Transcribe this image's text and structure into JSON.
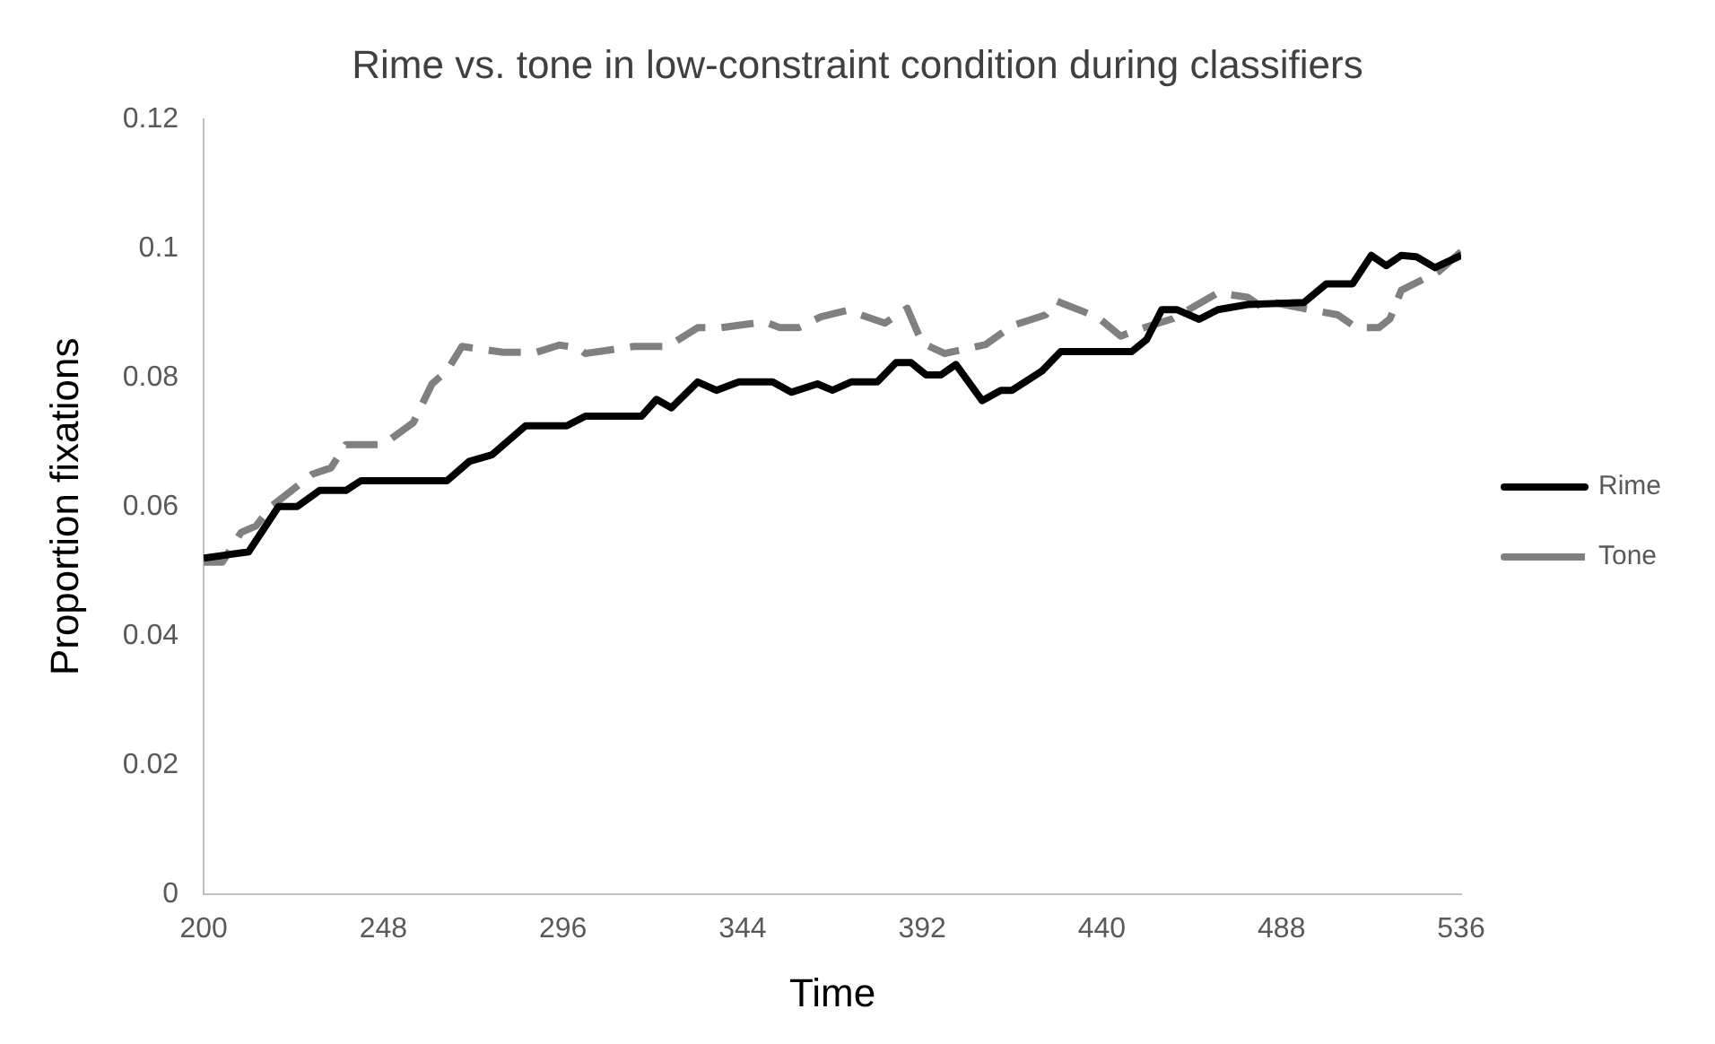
{
  "chart_data": {
    "type": "line",
    "title": "Rime vs. tone in low-constraint condition during classifiers",
    "xlabel": "Time",
    "ylabel": "Proportion fixations",
    "xlim": [
      200,
      536
    ],
    "xticks": [
      200,
      248,
      296,
      344,
      392,
      440,
      488,
      536
    ],
    "ylim": [
      0,
      0.12
    ],
    "yticks": [
      0,
      0.02,
      0.04,
      0.06,
      0.08,
      0.1,
      0.12
    ],
    "grid": false,
    "legend": "right",
    "marker": "none",
    "series": [
      {
        "name": "Rime",
        "color": "#000000",
        "line_style": "solid",
        "x": [
          200,
          212,
          220,
          225,
          231,
          238,
          242,
          265,
          271,
          277,
          286,
          297,
          302,
          317,
          321,
          325,
          332,
          337,
          343,
          352,
          357,
          364,
          368,
          373,
          380,
          385,
          389,
          393,
          397,
          401,
          408,
          413,
          416,
          424,
          429,
          448,
          452,
          456,
          460,
          466,
          471,
          479,
          494,
          500,
          507,
          512,
          516,
          520,
          524,
          529,
          536
        ],
        "values": [
          0.052,
          0.053,
          0.06,
          0.06,
          0.0625,
          0.0625,
          0.064,
          0.064,
          0.067,
          0.068,
          0.0725,
          0.0725,
          0.074,
          0.074,
          0.0766,
          0.0753,
          0.0793,
          0.078,
          0.0793,
          0.0793,
          0.0777,
          0.079,
          0.078,
          0.0793,
          0.0793,
          0.0823,
          0.0823,
          0.0804,
          0.0804,
          0.082,
          0.0764,
          0.078,
          0.078,
          0.081,
          0.084,
          0.084,
          0.0859,
          0.0905,
          0.0905,
          0.089,
          0.0905,
          0.0913,
          0.0916,
          0.0945,
          0.0945,
          0.0989,
          0.0973,
          0.0989,
          0.0987,
          0.097,
          0.0989
        ]
      },
      {
        "name": "Tone",
        "color": "#808080",
        "line_style": "dashed",
        "x": [
          200,
          205,
          210,
          214,
          218,
          229,
          234,
          238,
          248,
          256,
          261,
          265,
          269,
          280,
          289,
          295,
          300,
          302,
          315,
          324,
          332,
          338,
          350,
          354,
          359,
          365,
          372,
          382,
          388,
          392,
          398,
          409,
          416,
          425,
          428,
          439,
          445,
          449,
          459,
          471,
          479,
          483,
          486,
          491,
          503,
          508,
          514,
          517,
          520,
          530,
          536
        ],
        "values": [
          0.0514,
          0.0514,
          0.056,
          0.057,
          0.06,
          0.065,
          0.066,
          0.0696,
          0.0696,
          0.073,
          0.079,
          0.081,
          0.0848,
          0.0839,
          0.0839,
          0.085,
          0.0846,
          0.0837,
          0.0848,
          0.0848,
          0.0877,
          0.0877,
          0.0886,
          0.0877,
          0.0877,
          0.0894,
          0.0904,
          0.0884,
          0.0907,
          0.0853,
          0.0837,
          0.0851,
          0.088,
          0.0897,
          0.0918,
          0.0893,
          0.0864,
          0.0873,
          0.0891,
          0.0931,
          0.0924,
          0.0908,
          0.0916,
          0.091,
          0.0897,
          0.0877,
          0.0877,
          0.0891,
          0.0935,
          0.0964,
          0.0995
        ]
      }
    ]
  }
}
